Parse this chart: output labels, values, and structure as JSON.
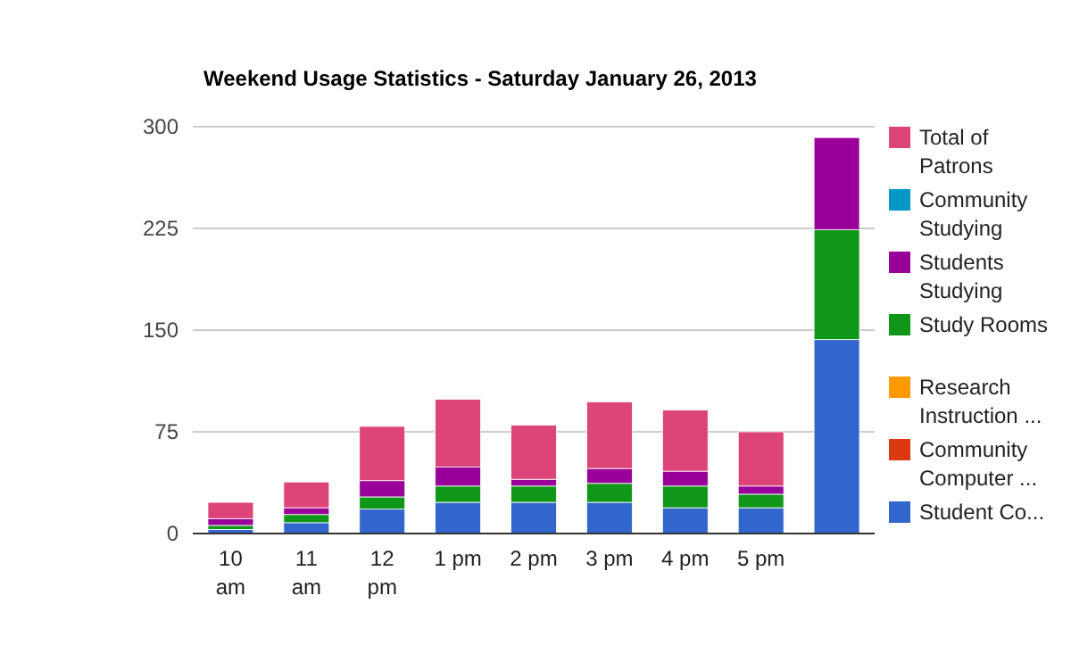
{
  "chart_data": {
    "type": "bar",
    "stacked": true,
    "title": "Weekend Usage Statistics - Saturday January 26, 2013",
    "categories": [
      "10 am",
      "11 am",
      "12 pm",
      "1 pm",
      "2 pm",
      "3 pm",
      "4 pm",
      "5 pm",
      null
    ],
    "series": [
      {
        "name": "Student Co...",
        "color": "#3366cc",
        "values": [
          3,
          8,
          18,
          23,
          23,
          23,
          19,
          19,
          143
        ]
      },
      {
        "name": "Community Computer ...",
        "color": "#dc3912",
        "values": [
          0,
          0,
          0,
          0,
          0,
          0,
          0,
          0,
          0
        ]
      },
      {
        "name": "Research Instruction ...",
        "color": "#ff9900",
        "values": [
          0,
          0,
          0,
          0,
          0,
          0,
          0,
          0,
          0
        ]
      },
      {
        "name": "Study Rooms",
        "color": "#109618",
        "values": [
          3,
          6,
          9,
          12,
          12,
          14,
          16,
          10,
          81
        ]
      },
      {
        "name": "Students Studying",
        "color": "#990099",
        "values": [
          5,
          5,
          12,
          14,
          5,
          11,
          11,
          6,
          68
        ]
      },
      {
        "name": "Community Studying",
        "color": "#0099c6",
        "values": [
          0,
          0,
          0,
          0,
          0,
          0,
          0,
          0,
          0
        ]
      },
      {
        "name": "Total of Patrons",
        "color": "#dd4477",
        "values": [
          12,
          19,
          40,
          50,
          40,
          49,
          45,
          40,
          0
        ]
      }
    ],
    "ylim": [
      0,
      300
    ],
    "yticks": [
      0,
      75,
      150,
      225,
      300
    ],
    "grid": true,
    "legend": "right"
  }
}
